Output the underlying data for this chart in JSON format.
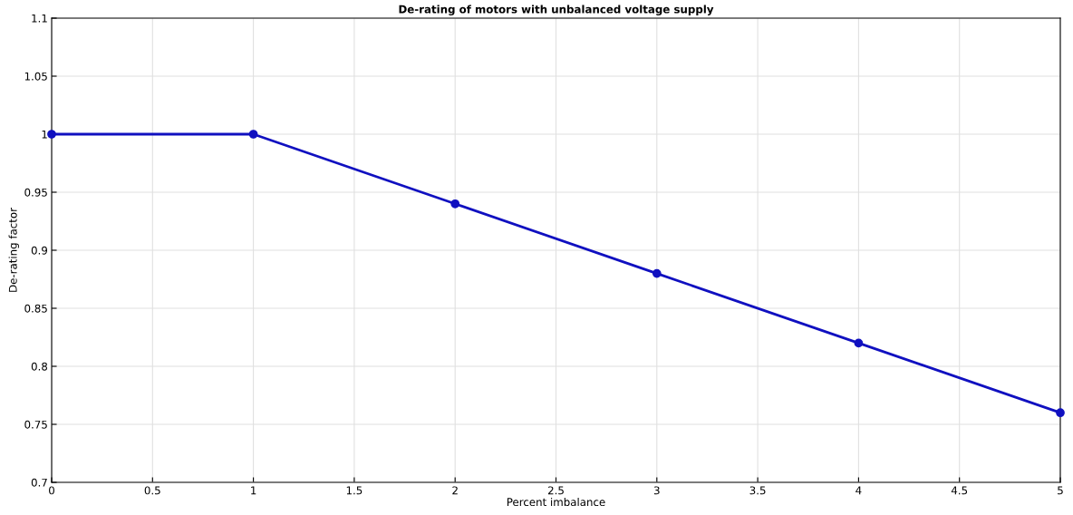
{
  "chart_data": {
    "type": "line",
    "title": "De-rating of motors with unbalanced voltage supply",
    "xlabel": "Percent imbalance",
    "ylabel": "De-rating factor",
    "x": [
      0,
      1,
      2,
      3,
      4,
      5
    ],
    "series": [
      {
        "color": "#1010c0",
        "values": [
          1,
          1,
          0.94,
          0.88,
          0.82,
          0.76
        ]
      }
    ],
    "xlim": [
      0,
      5
    ],
    "xticks": [
      0,
      0.5,
      1,
      1.5,
      2,
      2.5,
      3,
      3.5,
      4,
      4.5,
      5
    ],
    "ylim": [
      0.7,
      1.1
    ],
    "yticks": [
      0.7,
      0.75,
      0.8,
      0.85,
      0.9,
      0.95,
      1,
      1.05,
      1.1
    ],
    "grid": true,
    "marker": "circle",
    "line_style": "solid",
    "legend": false
  }
}
